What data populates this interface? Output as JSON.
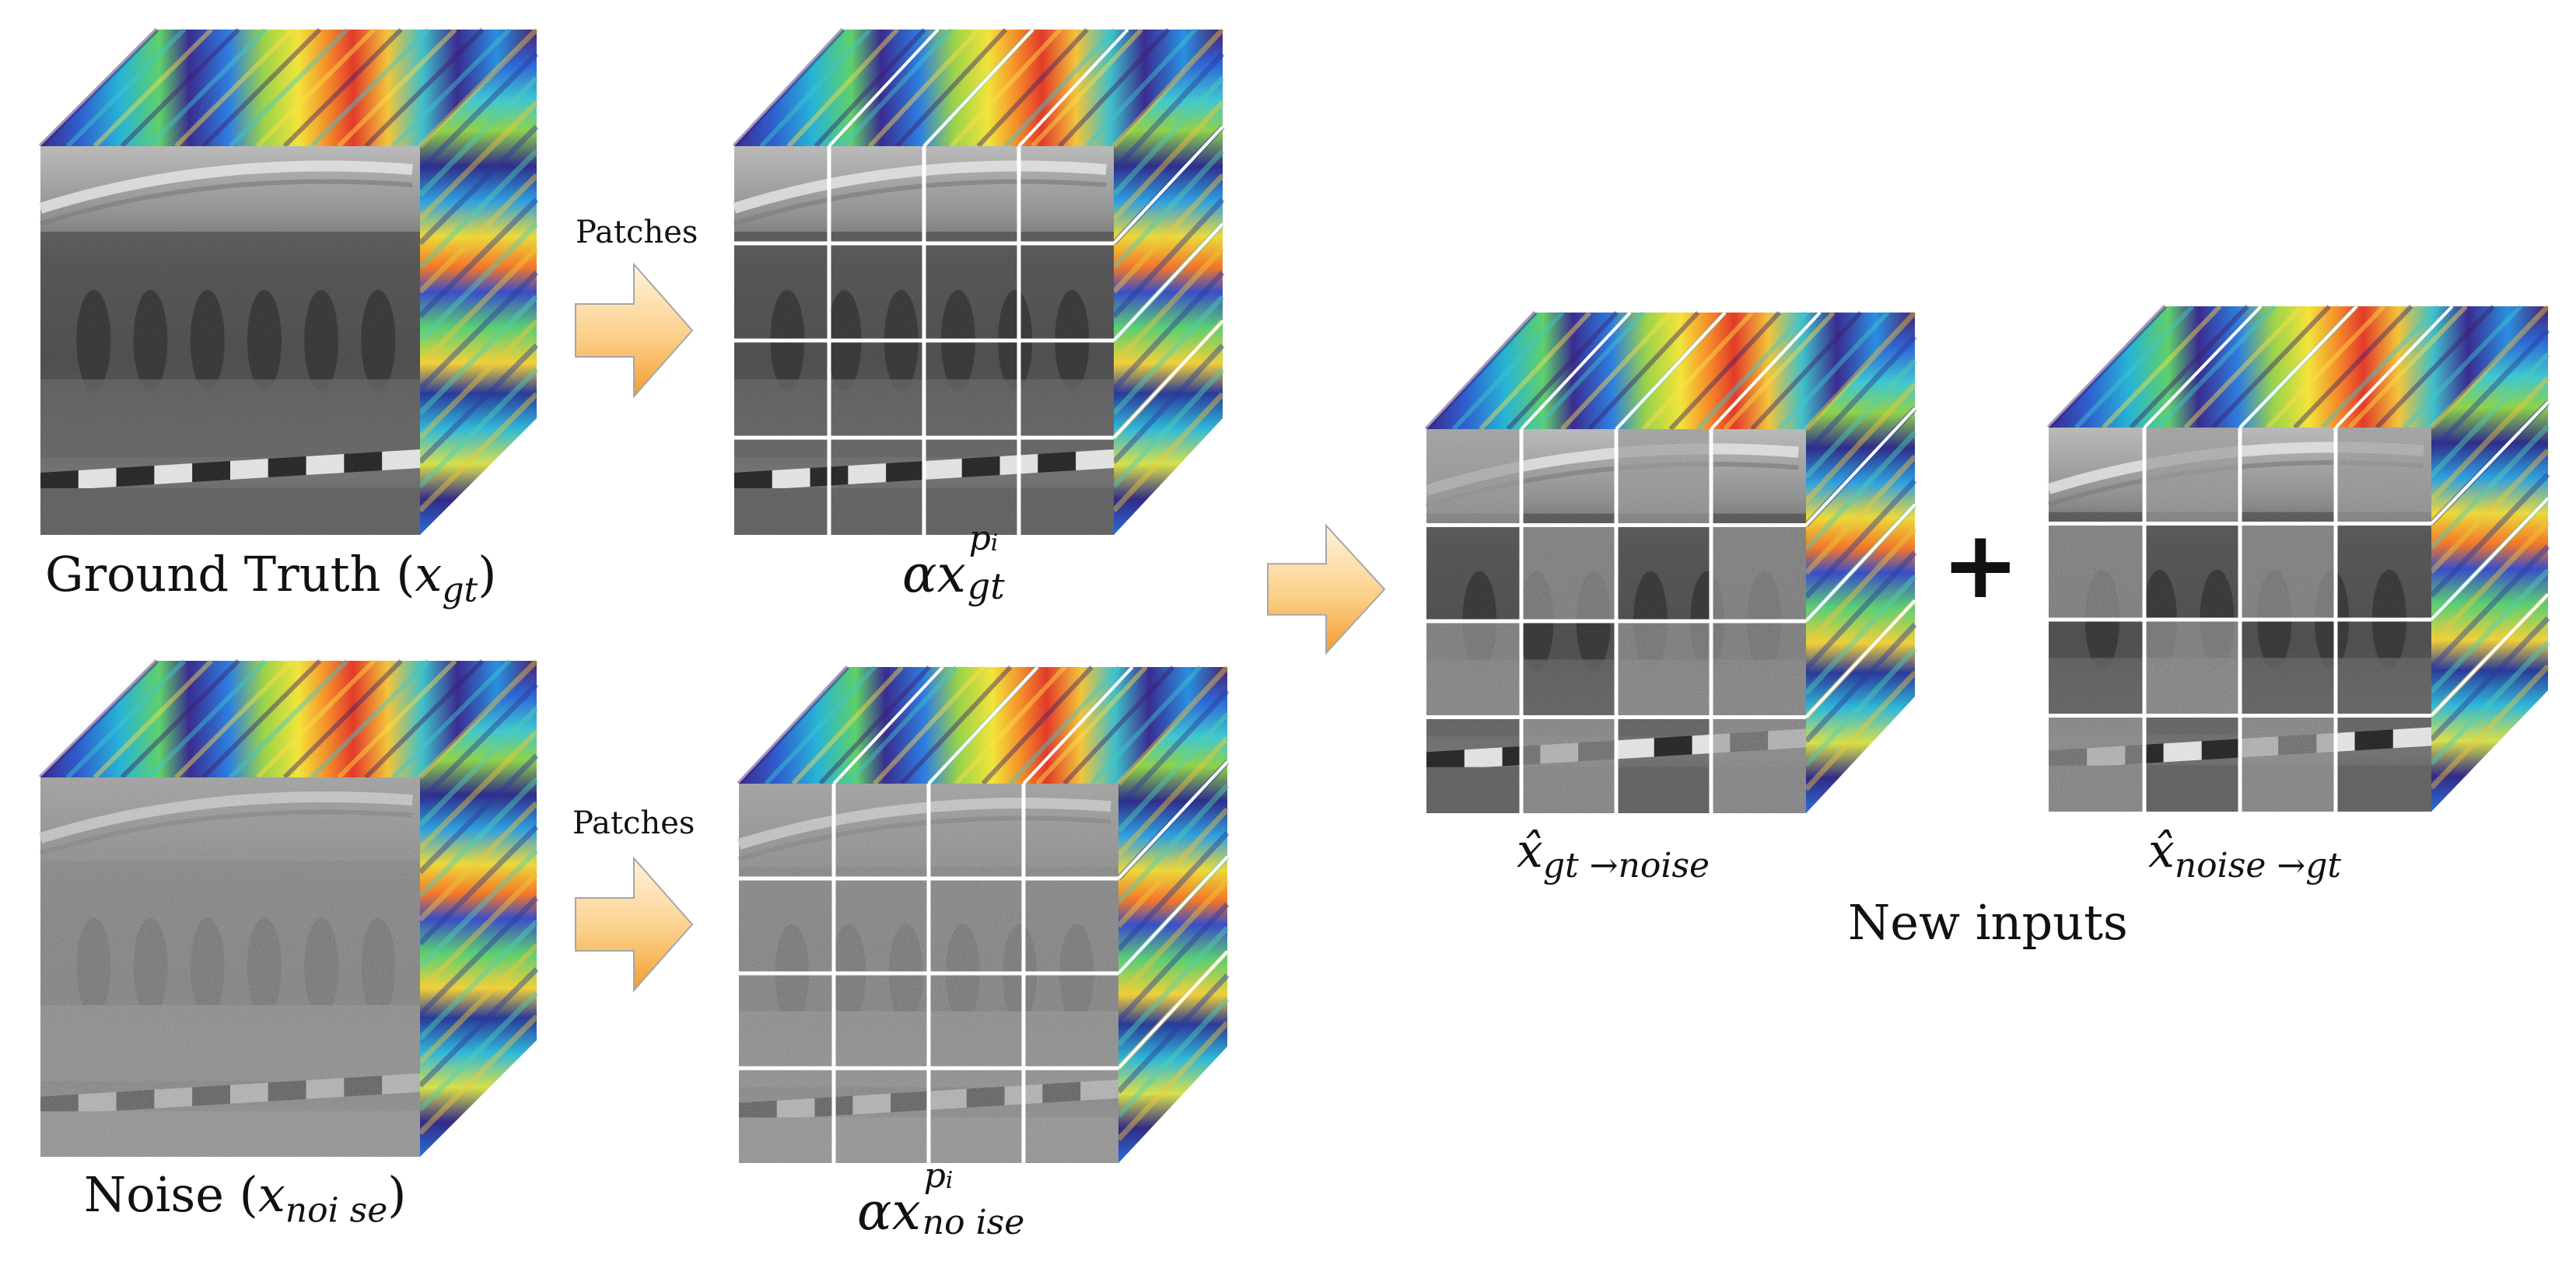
{
  "labels": {
    "patches_top": "Patches",
    "patches_bottom": "Patches",
    "ground_truth": "Ground Truth (",
    "ground_truth_var": "x",
    "ground_truth_sub": "gt",
    "ground_truth_close": ")",
    "noise": "Noise (",
    "noise_var": "x",
    "noise_sub": "noi se",
    "noise_close": ")",
    "alpha_gt": "αx",
    "alpha_gt_sup": "p",
    "alpha_gt_sup_sub": "i",
    "alpha_gt_sub": "gt",
    "alpha_noise": "αx",
    "alpha_noise_sup": "p",
    "alpha_noise_sup_sub": "i",
    "alpha_noise_sub": "no ise",
    "mix_gt_noise_var": "x̂",
    "mix_gt_noise_sub": "gt →noise",
    "mix_noise_gt_var": "x̂",
    "mix_noise_gt_sub": "noise →gt",
    "plus": "+",
    "new_inputs": "New inputs"
  },
  "colors": {
    "arrow_top": "#fde7c3",
    "arrow_bottom": "#f6b04a",
    "arrow_stroke": "#a7a7a7",
    "grid_line": "#ffffff"
  }
}
